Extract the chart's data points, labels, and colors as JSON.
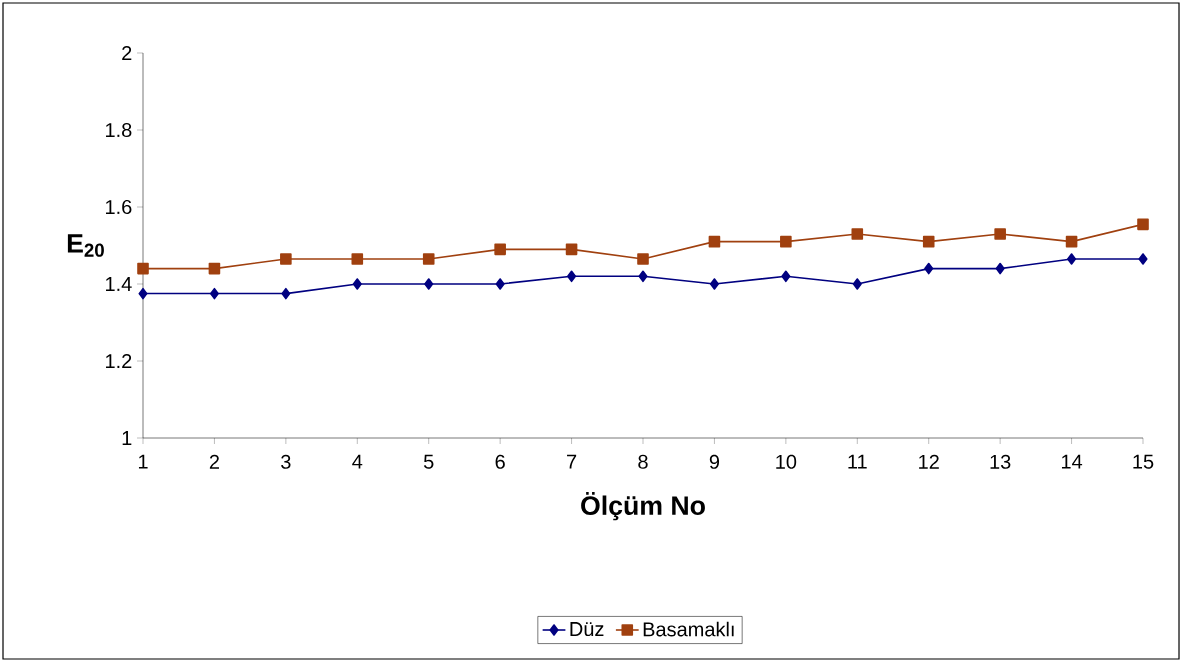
{
  "chart_data": {
    "type": "line",
    "xlabel": "Ölçüm No",
    "ylabel": "E$_{20}$",
    "categories": [
      "1",
      "2",
      "3",
      "4",
      "5",
      "6",
      "7",
      "8",
      "9",
      "10",
      "11",
      "12",
      "13",
      "14",
      "15"
    ],
    "series": [
      {
        "name": "Düz",
        "color": "#000080",
        "marker": "diamond",
        "values": [
          1.375,
          1.375,
          1.375,
          1.4,
          1.4,
          1.4,
          1.42,
          1.42,
          1.4,
          1.42,
          1.4,
          1.44,
          1.44,
          1.465,
          1.465
        ]
      },
      {
        "name": "Basamaklı",
        "color": "#a0400f",
        "marker": "square",
        "values": [
          1.44,
          1.44,
          1.465,
          1.465,
          1.465,
          1.49,
          1.49,
          1.465,
          1.51,
          1.51,
          1.53,
          1.51,
          1.53,
          1.51,
          1.555
        ]
      }
    ],
    "ylim": [
      1,
      2
    ],
    "yticks": [
      1,
      1.2,
      1.4,
      1.6,
      1.8,
      2
    ],
    "grid": false,
    "legend": "bottom",
    "line_style": "solid"
  }
}
